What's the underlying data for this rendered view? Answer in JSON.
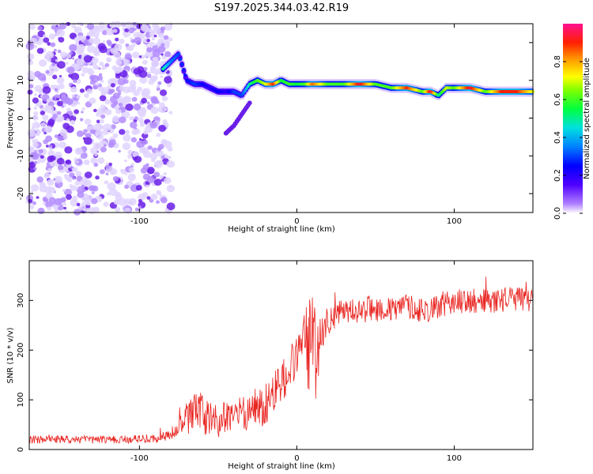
{
  "title": "S197.2025.344.03.42.R19",
  "chart_data": [
    {
      "type": "heatmap",
      "xlabel": "Height of straight line (km)",
      "ylabel": "Frequency (Hz)",
      "xlim": [
        -170,
        150
      ],
      "ylim": [
        -25,
        25
      ],
      "xticks": [
        -100,
        0,
        100
      ],
      "yticks": [
        -20,
        -10,
        0,
        10,
        20
      ],
      "colorbar": {
        "label": "Normalized spectral amplitude",
        "range": [
          0,
          1
        ],
        "ticks": [
          0.0,
          0.2,
          0.4,
          0.6,
          0.8
        ],
        "tick_labels": [
          "0.0",
          "0.2",
          "0.4",
          "0.6",
          "0.8"
        ]
      },
      "noise_region_x": [
        -170,
        -80
      ],
      "trace": {
        "x": [
          -85,
          -80,
          -75,
          -70,
          -65,
          -60,
          -55,
          -50,
          -45,
          -40,
          -35,
          -30,
          -25,
          -20,
          -15,
          -10,
          -5,
          0,
          5,
          10,
          20,
          30,
          40,
          50,
          60,
          70,
          80,
          85,
          90,
          95,
          100,
          110,
          120,
          130,
          140,
          150
        ],
        "freq": [
          13,
          15,
          17,
          10,
          9,
          9,
          8,
          7,
          7,
          7,
          6,
          9,
          10,
          9,
          9,
          10,
          9,
          9,
          9,
          9,
          9,
          9,
          9,
          9,
          8,
          8,
          7,
          7,
          6,
          8,
          8,
          8,
          7,
          7,
          7,
          7
        ],
        "amplitude": [
          0.5,
          0.35,
          0.3,
          0.25,
          0.3,
          0.25,
          0.2,
          0.25,
          0.2,
          0.3,
          0.3,
          0.5,
          0.6,
          0.7,
          0.9,
          0.55,
          0.6,
          0.55,
          0.6,
          0.85,
          0.6,
          0.6,
          0.95,
          0.6,
          0.6,
          0.9,
          0.6,
          0.95,
          0.5,
          0.7,
          0.6,
          0.95,
          0.6,
          0.9,
          0.9,
          0.7
        ]
      },
      "branch": {
        "x": [
          -45,
          -40,
          -35,
          -30
        ],
        "freq": [
          -4,
          -2,
          1,
          4
        ],
        "amplitude": [
          0.2,
          0.2,
          0.2,
          0.2
        ]
      }
    },
    {
      "type": "line",
      "xlabel": "Height of straight line (km)",
      "ylabel": "SNR (10 * v/v)",
      "xlim": [
        -170,
        150
      ],
      "ylim": [
        0,
        380
      ],
      "xticks": [
        -100,
        0,
        100
      ],
      "yticks": [
        0,
        100,
        200,
        300
      ],
      "series": [
        {
          "name": "SNR",
          "color": "#e8221e",
          "x": [
            -170,
            -160,
            -150,
            -140,
            -130,
            -120,
            -110,
            -100,
            -90,
            -85,
            -80,
            -75,
            -70,
            -65,
            -60,
            -55,
            -50,
            -45,
            -40,
            -35,
            -30,
            -25,
            -20,
            -15,
            -10,
            -5,
            0,
            5,
            8,
            10,
            12,
            15,
            20,
            25,
            30,
            40,
            50,
            60,
            70,
            80,
            90,
            100,
            110,
            120,
            130,
            140,
            150
          ],
          "y": [
            20,
            20,
            20,
            20,
            20,
            20,
            20,
            22,
            22,
            25,
            30,
            40,
            60,
            80,
            70,
            60,
            55,
            65,
            75,
            70,
            80,
            85,
            90,
            110,
            130,
            160,
            190,
            230,
            200,
            250,
            180,
            240,
            260,
            270,
            280,
            280,
            285,
            280,
            290,
            280,
            285,
            300,
            295,
            300,
            300,
            305,
            300
          ]
        }
      ],
      "spread": [
        8,
        8,
        8,
        8,
        8,
        8,
        8,
        8,
        9,
        10,
        14,
        20,
        35,
        40,
        40,
        35,
        35,
        35,
        35,
        35,
        40,
        40,
        45,
        45,
        45,
        45,
        45,
        50,
        110,
        90,
        100,
        45,
        30,
        25,
        25,
        25,
        28,
        25,
        25,
        25,
        25,
        25,
        25,
        25,
        25,
        25,
        25
      ]
    }
  ]
}
